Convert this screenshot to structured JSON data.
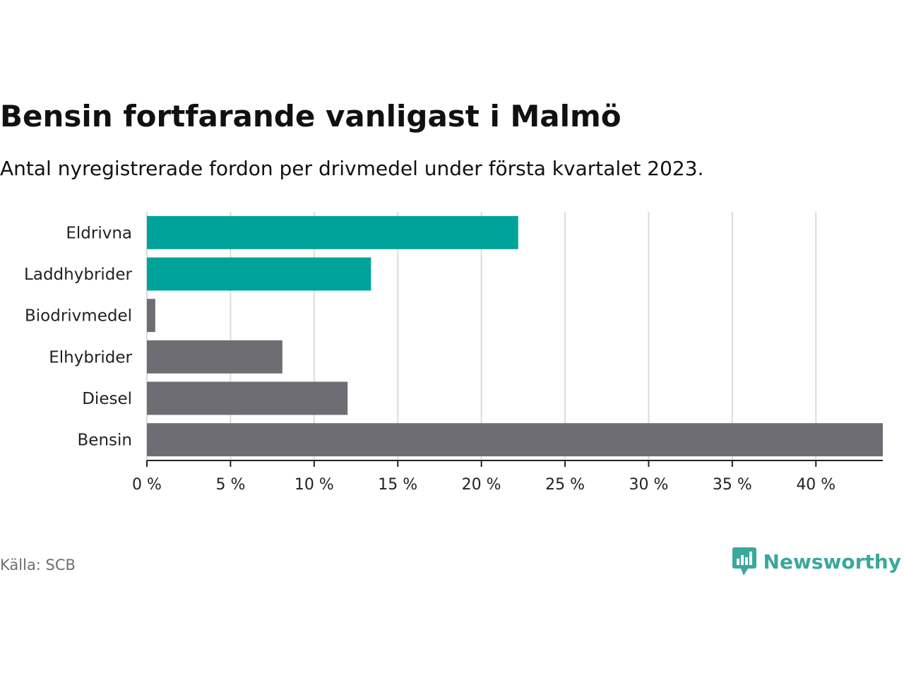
{
  "header": {
    "title": "Bensin fortfarande vanligast i Malmö",
    "subtitle": "Antal nyregistrerade fordon per drivmedel under första kvartalet 2023."
  },
  "footer": {
    "source": "Källa: SCB",
    "brand_name": "Newsworthy",
    "brand_icon": "newsworthy-logo-icon",
    "brand_color": "#3aa89a"
  },
  "chart_data": {
    "type": "bar",
    "orientation": "horizontal",
    "categories": [
      "Eldrivna",
      "Laddhybrider",
      "Biodrivmedel",
      "Elhybrider",
      "Diesel",
      "Bensin"
    ],
    "values": [
      22.2,
      13.4,
      0.5,
      8.1,
      12.0,
      44.0
    ],
    "bar_colors": [
      "#00a39a",
      "#00a39a",
      "#6e6d73",
      "#6e6d73",
      "#6e6d73",
      "#6e6d73"
    ],
    "xlim": [
      0,
      44
    ],
    "x_ticks": [
      0,
      5,
      10,
      15,
      20,
      25,
      30,
      35,
      40
    ],
    "x_tick_labels": [
      "0 %",
      "5 %",
      "10 %",
      "15 %",
      "20 %",
      "25 %",
      "30 %",
      "35 %",
      "40 %"
    ],
    "grid": true,
    "legend": "none"
  }
}
